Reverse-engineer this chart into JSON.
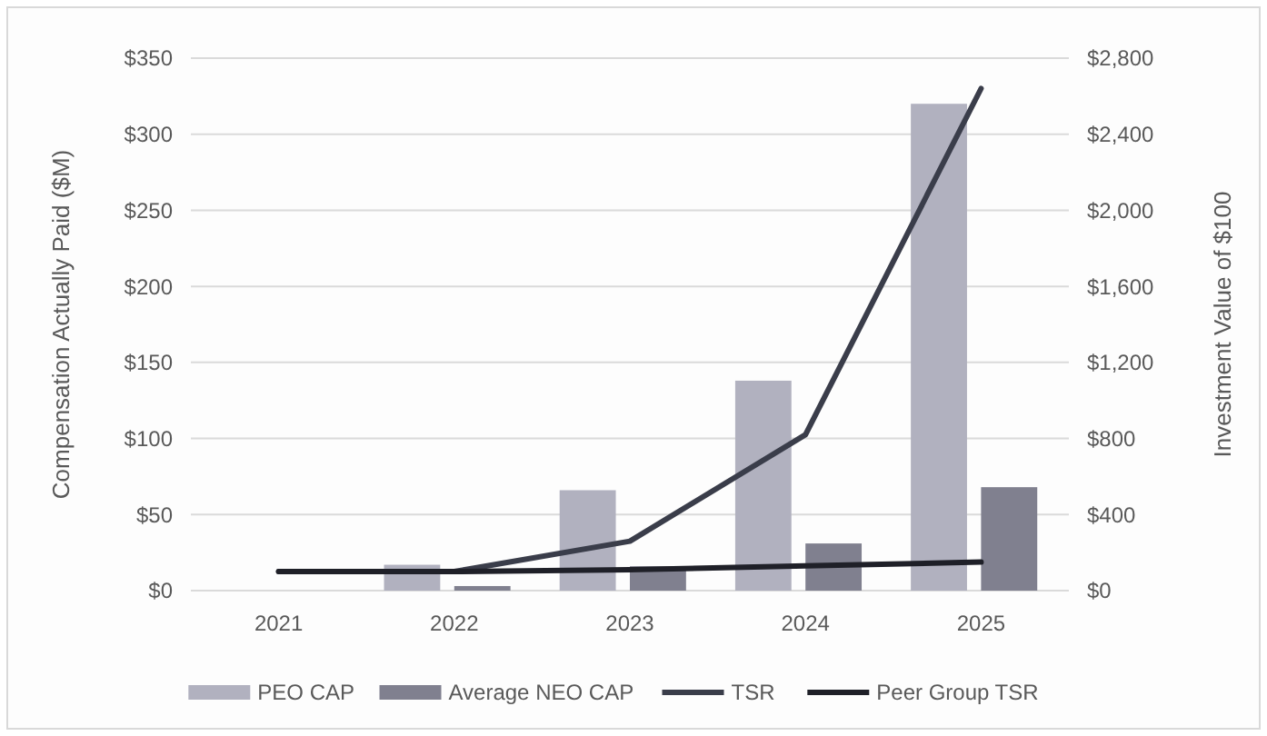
{
  "chart_data": {
    "type": "bar",
    "categories": [
      "2021",
      "2022",
      "2023",
      "2024",
      "2025"
    ],
    "series": [
      {
        "name": "PEO CAP",
        "color": "#b1b1bf",
        "values": [
          null,
          17,
          66,
          138,
          320
        ]
      },
      {
        "name": "Average NEO CAP",
        "color": "#80808f",
        "values": [
          null,
          3,
          16,
          31,
          68
        ]
      },
      {
        "name": "TSR",
        "type": "line",
        "axis": "y2",
        "color": "#3a3d4a",
        "values": [
          100,
          100,
          260,
          820,
          2640
        ]
      },
      {
        "name": "Peer Group TSR",
        "type": "line",
        "axis": "y2",
        "color": "#1f2028",
        "values": [
          100,
          100,
          110,
          130,
          150
        ]
      }
    ],
    "ylabel": "Compensation Actually Paid ($M)",
    "y2label": "Investment Value of $100",
    "ylim": [
      0,
      350
    ],
    "yticks": [
      {
        "value": 0,
        "label": "$0"
      },
      {
        "value": 50,
        "label": "$50"
      },
      {
        "value": 100,
        "label": "$100"
      },
      {
        "value": 150,
        "label": "$150"
      },
      {
        "value": 200,
        "label": "$200"
      },
      {
        "value": 250,
        "label": "$250"
      },
      {
        "value": 300,
        "label": "$300"
      },
      {
        "value": 350,
        "label": "$350"
      }
    ],
    "y2lim": [
      0,
      2800
    ],
    "y2ticks": [
      {
        "value": 0,
        "label": "$0"
      },
      {
        "value": 400,
        "label": "$400"
      },
      {
        "value": 800,
        "label": "$800"
      },
      {
        "value": 1200,
        "label": "$1,200"
      },
      {
        "value": 1600,
        "label": "$1,600"
      },
      {
        "value": 2000,
        "label": "$2,000"
      },
      {
        "value": 2400,
        "label": "$2,400"
      },
      {
        "value": 2800,
        "label": "$2,800"
      }
    ],
    "grid": "y",
    "legend": "bottom",
    "marker": "none",
    "line_style": "solid"
  }
}
